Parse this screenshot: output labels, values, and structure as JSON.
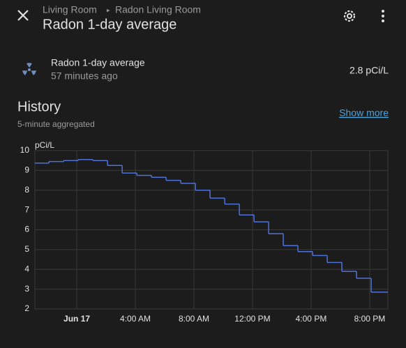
{
  "header": {
    "breadcrumb": [
      "Living Room",
      "Radon Living Room"
    ],
    "title": "Radon 1-day average"
  },
  "entity": {
    "name": "Radon 1-day average",
    "updated": "57 minutes ago",
    "state": "2.8 pCi/L"
  },
  "history": {
    "title": "History",
    "subtitle": "5-minute aggregated",
    "link": "Show more"
  },
  "chart_data": {
    "type": "step",
    "y_label": "pCi/L",
    "color": "#4f72d9",
    "grid": true,
    "x": [
      -2.86,
      -1.9,
      -0.9,
      0.1,
      1.1,
      2.1,
      3.1,
      4.1,
      5.1,
      6.1,
      7.1,
      8.1,
      9.1,
      10.1,
      11.1,
      12.1,
      13.1,
      14.1,
      15.1,
      16.1,
      17.1,
      18.1,
      19.1,
      20.1
    ],
    "values": [
      9.37,
      9.45,
      9.5,
      9.55,
      9.5,
      9.25,
      8.87,
      8.75,
      8.65,
      8.5,
      8.35,
      8.0,
      7.6,
      7.3,
      6.75,
      6.4,
      5.8,
      5.2,
      4.9,
      4.7,
      4.35,
      3.9,
      3.55,
      2.85
    ],
    "xlim": [
      -2.86,
      21.24
    ],
    "xticks": [
      {
        "value": 0,
        "label": "Jun 17"
      },
      {
        "value": 4,
        "label": "4:00 AM"
      },
      {
        "value": 8,
        "label": "8:00 AM"
      },
      {
        "value": 12,
        "label": "12:00 PM"
      },
      {
        "value": 16,
        "label": "4:00 PM"
      },
      {
        "value": 20,
        "label": "8:00 PM"
      }
    ],
    "ylim": [
      2,
      10
    ],
    "yticks": [
      2,
      3,
      4,
      5,
      6,
      7,
      8,
      9,
      10
    ]
  }
}
